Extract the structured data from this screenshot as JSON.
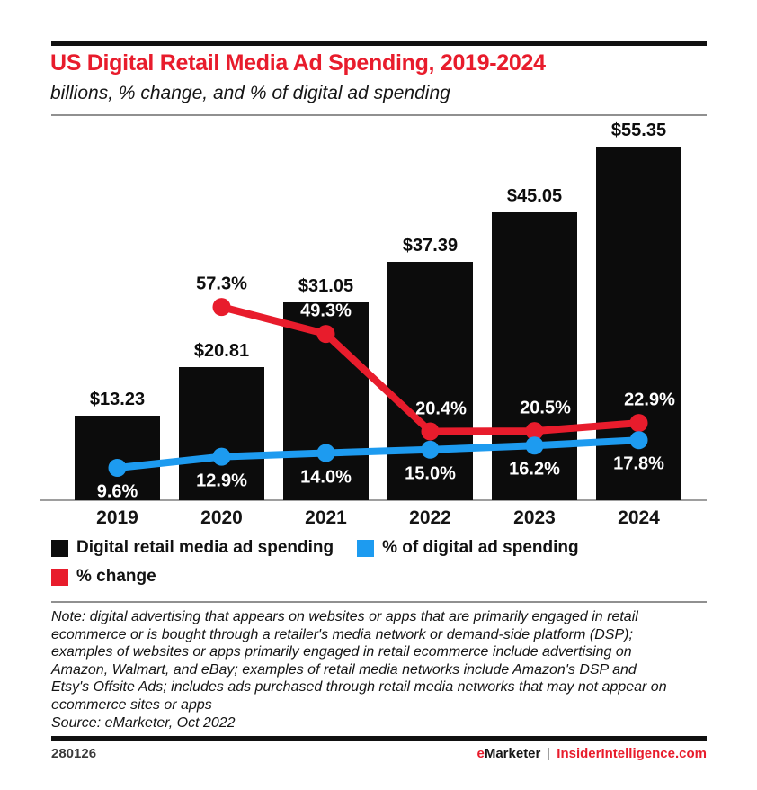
{
  "chart_data": {
    "type": "combo",
    "categories": [
      "2019",
      "2020",
      "2021",
      "2022",
      "2023",
      "2024"
    ],
    "series": [
      {
        "name": "Digital retail media ad spending",
        "kind": "bar",
        "unit": "billions USD",
        "color": "#0c0c0c",
        "values": [
          13.23,
          20.81,
          31.05,
          37.39,
          45.05,
          55.35
        ],
        "labels": [
          "$13.23",
          "$20.81",
          "$31.05",
          "$37.39",
          "$45.05",
          "$55.35"
        ]
      },
      {
        "name": "% change",
        "kind": "line",
        "color": "#e81c2c",
        "values": [
          null,
          57.3,
          49.3,
          20.4,
          20.5,
          22.9
        ],
        "labels": [
          null,
          "57.3%",
          "49.3%",
          "20.4%",
          "20.5%",
          "22.9%"
        ]
      },
      {
        "name": "% of digital ad spending",
        "kind": "line",
        "color": "#1d9bf0",
        "values": [
          9.6,
          12.9,
          14.0,
          15.0,
          16.2,
          17.8
        ],
        "labels": [
          "9.6%",
          "12.9%",
          "14.0%",
          "15.0%",
          "16.2%",
          "17.8%"
        ]
      }
    ],
    "title": "US Digital Retail Media Ad Spending, 2019-2024",
    "subtitle": "billions, % change, and % of digital ad spending",
    "xlabel": "",
    "ylabel": "",
    "grid": false,
    "legend_position": "bottom"
  },
  "legend": {
    "items": [
      {
        "label": "Digital retail media ad spending",
        "color": "#0c0c0c"
      },
      {
        "label": "% of digital ad spending",
        "color": "#1d9bf0"
      },
      {
        "label": "% change",
        "color": "#e81c2c"
      }
    ]
  },
  "note": {
    "text": "Note: digital advertising that appears on websites or apps that are primarily engaged in retail ecommerce or is bought through a retailer's media network or demand-side platform (DSP); examples of websites or apps primarily engaged in retail ecommerce include advertising on Amazon, Walmart, and eBay; examples of retail media networks include Amazon's DSP and Etsy's Offsite Ads; includes ads purchased through retail media networks that may not appear on ecommerce sites or apps",
    "source": "Source: eMarketer, Oct 2022"
  },
  "footer": {
    "id": "280126",
    "brand_e": "e",
    "brand_rest": "Marketer",
    "separator": "|",
    "site": "InsiderIntelligence.com"
  }
}
